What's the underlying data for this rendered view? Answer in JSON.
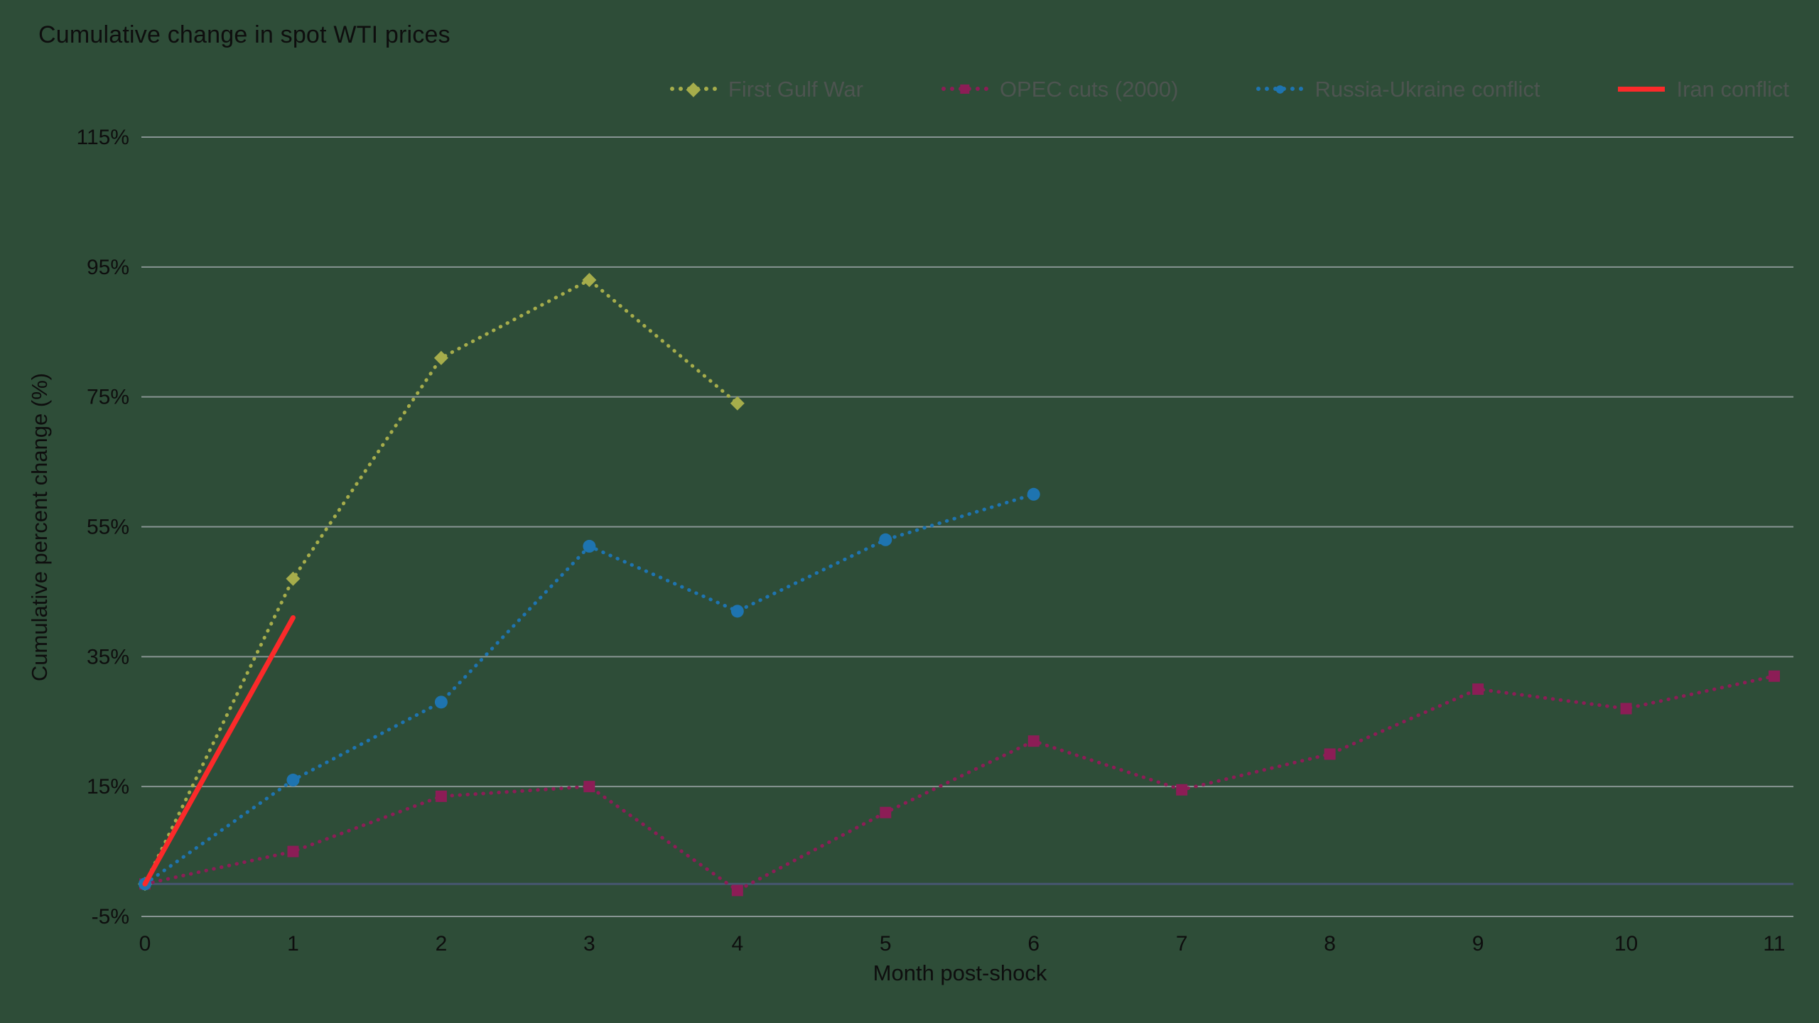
{
  "colors": {
    "background": "#2e4d38",
    "grid": "#a7adb2",
    "zero_line": "#465670",
    "text": "#0e0e0e",
    "legend_text": "#4d5450"
  },
  "chart_data": {
    "type": "line",
    "title": "Cumulative change in spot WTI prices",
    "xlabel": "Month post-shock",
    "ylabel": "Cumulative percent change (%)",
    "xlim": [
      0,
      11
    ],
    "ylim": [
      -5,
      115
    ],
    "x_ticks": [
      0,
      1,
      2,
      3,
      4,
      5,
      6,
      7,
      8,
      9,
      10,
      11
    ],
    "y_ticks": [
      115,
      95,
      75,
      55,
      35,
      15,
      -5
    ],
    "y_tick_suffix": "%",
    "grid": "horizontal",
    "legend_position": "top-right",
    "series": [
      {
        "name": "First Gulf War",
        "color": "#a6ad4b",
        "line_style": "dotted",
        "marker": "diamond",
        "x": [
          0,
          1,
          2,
          3,
          4
        ],
        "values": [
          0,
          47,
          81,
          93,
          74
        ]
      },
      {
        "name": "OPEC cuts (2000)",
        "color": "#8c1d56",
        "line_style": "dotted",
        "marker": "square",
        "x": [
          0,
          1,
          2,
          3,
          4,
          5,
          6,
          7,
          8,
          9,
          10,
          11
        ],
        "values": [
          0,
          5,
          13.5,
          15,
          -1,
          11,
          22,
          14.5,
          20,
          30,
          27,
          32
        ]
      },
      {
        "name": "Russia-Ukraine conflict",
        "color": "#1e74b0",
        "line_style": "dotted",
        "marker": "circle",
        "x": [
          0,
          1,
          2,
          3,
          4,
          5,
          6
        ],
        "values": [
          0,
          16,
          28,
          52,
          42,
          53,
          60
        ]
      },
      {
        "name": "Iran conflict",
        "color": "#fb2a2a",
        "line_style": "solid",
        "marker": "none",
        "x": [
          0,
          1
        ],
        "values": [
          0,
          41
        ]
      }
    ]
  }
}
